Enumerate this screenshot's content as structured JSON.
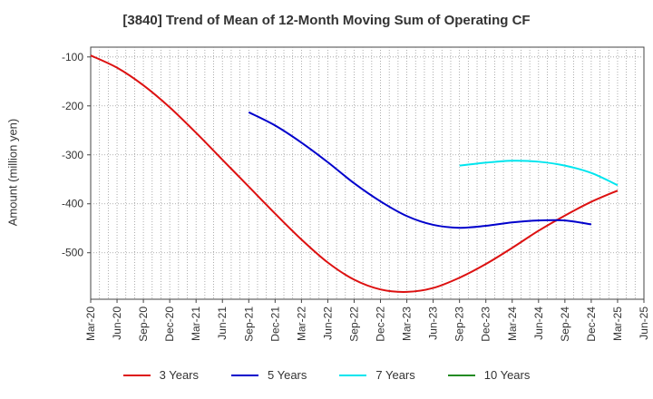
{
  "chart_data": {
    "type": "line",
    "title": "[3840]  Trend of Mean of 12-Month Moving Sum of Operating CF",
    "xlabel": "",
    "ylabel": "Amount (million yen)",
    "ylim": [
      -595,
      -80
    ],
    "yticks": [
      -100,
      -200,
      -300,
      -400,
      -500
    ],
    "x_labels": [
      "Mar-20",
      "Jun-20",
      "Sep-20",
      "Dec-20",
      "Mar-21",
      "Jun-21",
      "Sep-21",
      "Dec-21",
      "Mar-22",
      "Jun-22",
      "Sep-22",
      "Dec-22",
      "Mar-23",
      "Jun-23",
      "Sep-23",
      "Dec-23",
      "Mar-24",
      "Jun-24",
      "Sep-24",
      "Dec-24",
      "Mar-25",
      "Jun-25"
    ],
    "series": [
      {
        "name": "3 Years",
        "color": "#dd1111",
        "start_index": 0,
        "values": [
          -97,
          -122,
          -158,
          -203,
          -255,
          -310,
          -365,
          -420,
          -473,
          -520,
          -555,
          -575,
          -580,
          -572,
          -551,
          -523,
          -490,
          -455,
          -424,
          -396,
          -373
        ]
      },
      {
        "name": "5 Years",
        "color": "#0000cc",
        "start_index": 6,
        "values": [
          -213,
          -240,
          -275,
          -315,
          -358,
          -395,
          -425,
          -443,
          -449,
          -445,
          -438,
          -434,
          -434,
          -442
        ]
      },
      {
        "name": "7 Years",
        "color": "#00e5ee",
        "start_index": 14,
        "values": [
          -322,
          -316,
          -312,
          -314,
          -322,
          -337,
          -362
        ]
      },
      {
        "name": "10 Years",
        "color": "#228b22",
        "start_index": 0,
        "values": []
      }
    ]
  }
}
